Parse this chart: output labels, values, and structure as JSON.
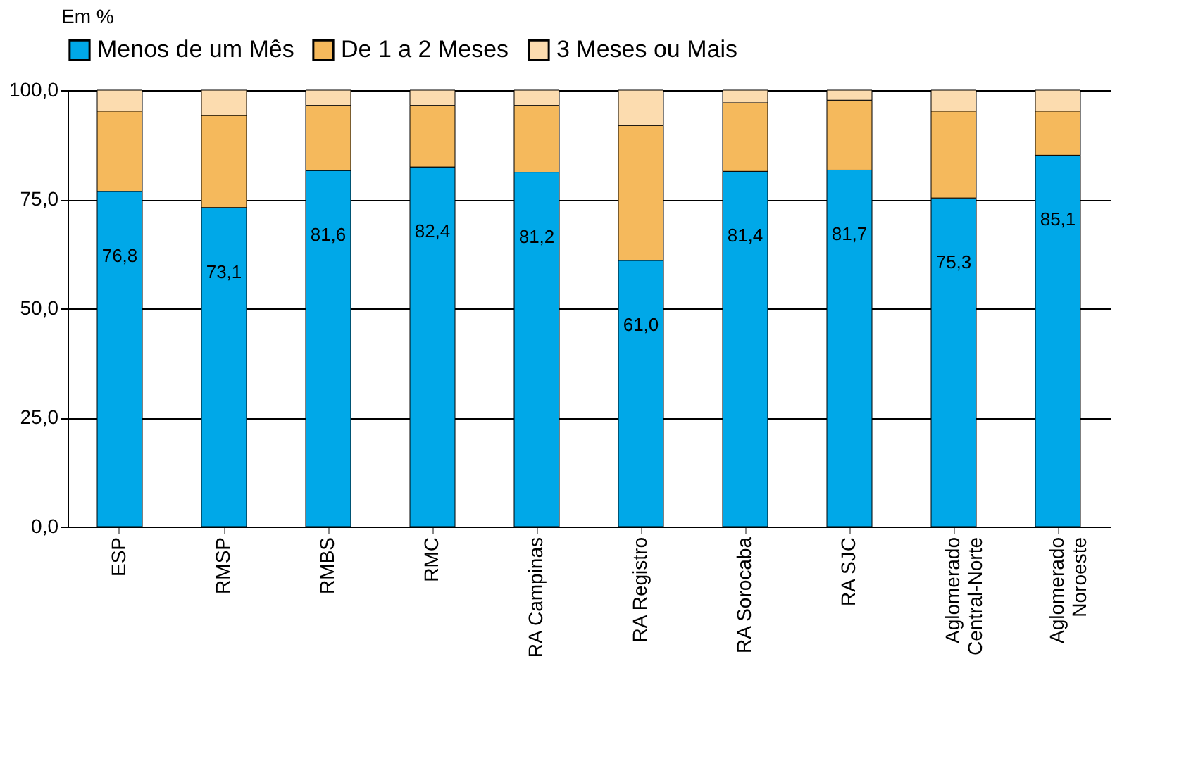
{
  "chart_data": {
    "type": "bar",
    "stacked": true,
    "ylabel": "Em %",
    "categories": [
      "ESP",
      "RMSP",
      "RMBS",
      "RMC",
      "RA Campinas",
      "RA Registro",
      "RA Sorocaba",
      "RA SJC",
      "Aglomerado\nCentral-Norte",
      "Aglomerado\nNoroeste"
    ],
    "series": [
      {
        "name": "Menos de um Mês",
        "color": "#00a8e8",
        "values": [
          76.8,
          73.1,
          81.6,
          82.4,
          81.2,
          61.0,
          81.4,
          81.7,
          75.3,
          85.1
        ],
        "value_labels": [
          "76,8",
          "73,1",
          "81,6",
          "82,4",
          "81,2",
          "61,0",
          "81,4",
          "81,7",
          "75,3",
          "85,1"
        ]
      },
      {
        "name": "De 1 a 2 Meses",
        "color": "#f5b95c",
        "values": [
          18.4,
          21.1,
          14.9,
          14.1,
          15.3,
          30.9,
          15.7,
          16.0,
          19.9,
          10.1
        ]
      },
      {
        "name": "3 Meses ou Mais",
        "color": "#fcdcaf",
        "values": [
          4.8,
          5.8,
          3.5,
          3.5,
          3.5,
          8.1,
          2.9,
          2.3,
          4.8,
          4.8
        ]
      }
    ],
    "ylim": [
      0,
      100
    ],
    "yticks": [
      {
        "value": 0,
        "label": "0,0"
      },
      {
        "value": 25,
        "label": "25,0"
      },
      {
        "value": 50,
        "label": "50,0"
      },
      {
        "value": 75,
        "label": "75,0"
      },
      {
        "value": 100,
        "label": "100,0"
      }
    ],
    "grid": "y",
    "legend": "top"
  }
}
